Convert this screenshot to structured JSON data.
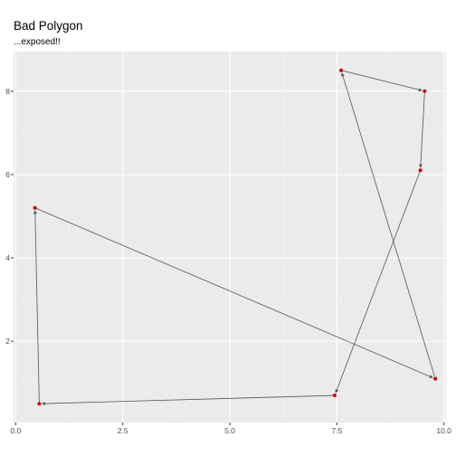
{
  "chart_data": {
    "type": "scatter",
    "title": "Bad Polygon",
    "subtitle": "...exposed!!",
    "xlabel": "",
    "ylabel": "",
    "xlim": [
      -0.05,
      10.05
    ],
    "ylim": [
      0.05,
      8.95
    ],
    "x_ticks": [
      0.0,
      2.5,
      5.0,
      7.5,
      10.0
    ],
    "x_tick_labels": [
      "0.0",
      "2.5",
      "5.0",
      "7.5",
      "10.0"
    ],
    "y_ticks": [
      2,
      4,
      6,
      8
    ],
    "y_tick_labels": [
      "2",
      "4",
      "6",
      "8"
    ],
    "grid": true,
    "legend": "none",
    "point_color": "#cc0000",
    "segment_color": "#555555",
    "panel_color": "#ebebeb",
    "points": [
      {
        "x": 7.6,
        "y": 8.5
      },
      {
        "x": 9.55,
        "y": 8.0
      },
      {
        "x": 9.45,
        "y": 6.1
      },
      {
        "x": 7.45,
        "y": 0.7
      },
      {
        "x": 0.55,
        "y": 0.5
      },
      {
        "x": 0.45,
        "y": 5.2
      },
      {
        "x": 9.8,
        "y": 1.1
      }
    ],
    "path_order": [
      0,
      1,
      2,
      3,
      4,
      5,
      6,
      0
    ]
  }
}
